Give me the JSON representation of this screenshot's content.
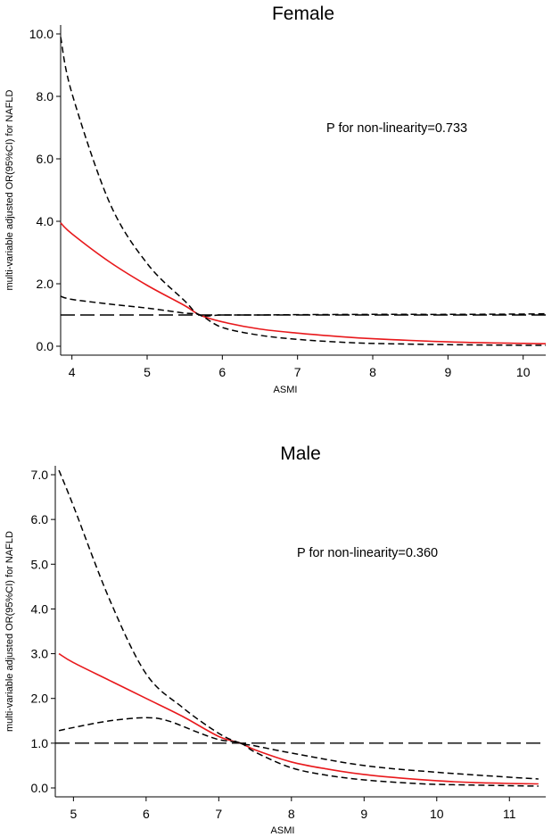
{
  "chart_data": [
    {
      "type": "line",
      "title": "Female",
      "xlabel": "ASMI",
      "ylabel": "multi-variable adjusted OR(95%CI) for NAFLD",
      "xlim": [
        3.85,
        10.3
      ],
      "ylim": [
        0,
        10
      ],
      "xticks": [
        "4",
        "5",
        "6",
        "7",
        "8",
        "9",
        "10"
      ],
      "yticks": [
        "0.0",
        "2.0",
        "4.0",
        "6.0",
        "8.0",
        "10.0"
      ],
      "annotation": "P for non-linearity=0.733",
      "reference_line": 1.0,
      "series": [
        {
          "name": "OR",
          "color": "#e8191c",
          "style": "solid",
          "x": [
            3.85,
            4.0,
            4.5,
            5.0,
            5.5,
            5.7,
            6.0,
            6.5,
            7.0,
            7.5,
            8.0,
            9.0,
            10.0,
            10.3
          ],
          "values": [
            3.95,
            3.6,
            2.7,
            1.95,
            1.3,
            1.0,
            0.78,
            0.55,
            0.42,
            0.32,
            0.24,
            0.14,
            0.09,
            0.08
          ]
        },
        {
          "name": "Upper 95% CI",
          "color": "#000000",
          "style": "dashed",
          "x": [
            3.85,
            4.0,
            4.5,
            5.0,
            5.5,
            5.7,
            6.0,
            6.5,
            7.0,
            8.0,
            9.0,
            10.0,
            10.3
          ],
          "values": [
            9.9,
            8.1,
            4.6,
            2.65,
            1.45,
            1.0,
            1.0,
            1.0,
            1.01,
            1.02,
            1.02,
            1.03,
            1.04
          ]
        },
        {
          "name": "Lower 95% CI",
          "color": "#000000",
          "style": "dashed",
          "x": [
            3.85,
            4.0,
            4.5,
            5.0,
            5.5,
            5.7,
            6.0,
            6.5,
            7.0,
            7.5,
            8.0,
            9.0,
            10.0,
            10.3
          ],
          "values": [
            1.6,
            1.5,
            1.35,
            1.22,
            1.06,
            1.0,
            0.6,
            0.35,
            0.22,
            0.14,
            0.09,
            0.05,
            0.03,
            0.03
          ]
        }
      ]
    },
    {
      "type": "line",
      "title": "Male",
      "xlabel": "ASMI",
      "ylabel": "multi-variable adjusted OR(95%CI) for NAFLD",
      "xlim": [
        4.75,
        11.5
      ],
      "ylim": [
        0,
        7
      ],
      "xticks": [
        "5",
        "6",
        "7",
        "8",
        "9",
        "10",
        "11"
      ],
      "yticks": [
        "0.0",
        "1.0",
        "2.0",
        "3.0",
        "4.0",
        "5.0",
        "6.0",
        "7.0"
      ],
      "annotation": "P for non-linearity=0.360",
      "reference_line": 1.0,
      "series": [
        {
          "name": "OR",
          "color": "#e8191c",
          "style": "solid",
          "x": [
            4.8,
            5.0,
            5.5,
            6.0,
            6.5,
            7.0,
            7.3,
            7.5,
            8.0,
            8.5,
            9.0,
            9.5,
            10.0,
            10.5,
            11.0,
            11.4
          ],
          "values": [
            3.0,
            2.8,
            2.4,
            2.0,
            1.6,
            1.15,
            1.0,
            0.85,
            0.58,
            0.42,
            0.3,
            0.22,
            0.16,
            0.12,
            0.1,
            0.09
          ]
        },
        {
          "name": "Upper 95% CI",
          "color": "#000000",
          "style": "dashed",
          "x": [
            4.8,
            5.0,
            5.5,
            6.0,
            6.5,
            7.0,
            7.3,
            7.5,
            8.0,
            9.0,
            10.0,
            11.0,
            11.4
          ],
          "values": [
            7.1,
            6.3,
            4.2,
            2.55,
            1.8,
            1.22,
            1.0,
            0.94,
            0.78,
            0.5,
            0.35,
            0.24,
            0.2
          ]
        },
        {
          "name": "Lower 95% CI",
          "color": "#000000",
          "style": "dashed",
          "x": [
            4.8,
            5.0,
            5.5,
            6.0,
            6.3,
            6.7,
            7.0,
            7.3,
            7.5,
            8.0,
            8.5,
            9.0,
            9.5,
            10.0,
            11.0,
            11.4
          ],
          "values": [
            1.28,
            1.35,
            1.5,
            1.57,
            1.5,
            1.25,
            1.08,
            1.0,
            0.8,
            0.45,
            0.28,
            0.18,
            0.12,
            0.08,
            0.05,
            0.04
          ]
        }
      ]
    }
  ]
}
